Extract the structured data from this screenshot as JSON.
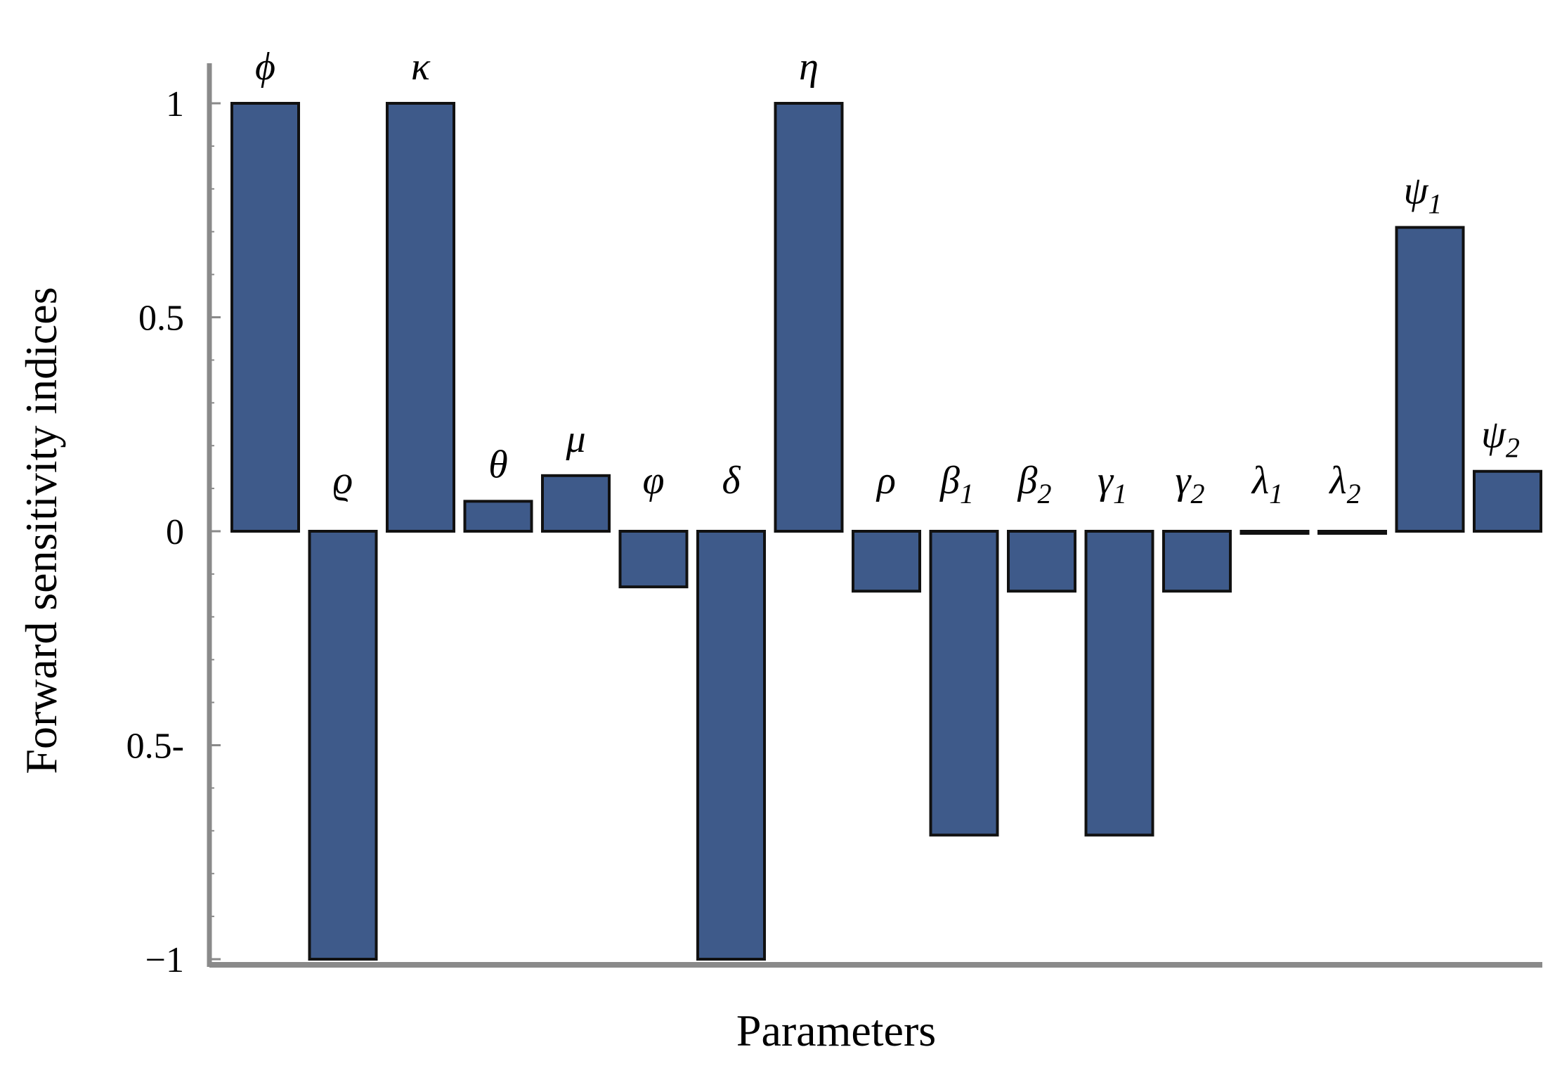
{
  "chart_data": {
    "type": "bar",
    "xlabel": "Parameters",
    "ylabel": "Forward sensitivity indices",
    "ylim": [
      -1,
      1
    ],
    "y_ticks": [
      {
        "value": 1,
        "label": "1"
      },
      {
        "value": 0.5,
        "label": "0.5"
      },
      {
        "value": 0,
        "label": "0"
      },
      {
        "value": -0.5,
        "label": "0.5-"
      },
      {
        "value": -1,
        "label": "−1"
      }
    ],
    "categories": [
      {
        "label": "ϕ",
        "sub": ""
      },
      {
        "label": "ϱ",
        "sub": ""
      },
      {
        "label": "κ",
        "sub": ""
      },
      {
        "label": "θ",
        "sub": ""
      },
      {
        "label": "μ",
        "sub": ""
      },
      {
        "label": "φ",
        "sub": ""
      },
      {
        "label": "δ",
        "sub": ""
      },
      {
        "label": "η",
        "sub": ""
      },
      {
        "label": "ρ",
        "sub": ""
      },
      {
        "label": "β",
        "sub": "1"
      },
      {
        "label": "β",
        "sub": "2"
      },
      {
        "label": "γ",
        "sub": "1"
      },
      {
        "label": "γ",
        "sub": "2"
      },
      {
        "label": "λ",
        "sub": "1"
      },
      {
        "label": "λ",
        "sub": "2"
      },
      {
        "label": "ψ",
        "sub": "1"
      },
      {
        "label": "ψ",
        "sub": "2"
      }
    ],
    "values": [
      1,
      -1,
      1,
      0.07,
      0.13,
      -0.13,
      -1,
      1,
      -0.14,
      -0.71,
      -0.14,
      -0.71,
      -0.14,
      0,
      0,
      0.71,
      0.14
    ],
    "colors": {
      "bar": "#3e5a8a",
      "bar_edge": "#111111",
      "axis": "#8a8a8a"
    },
    "grid": false,
    "legend": "none"
  }
}
